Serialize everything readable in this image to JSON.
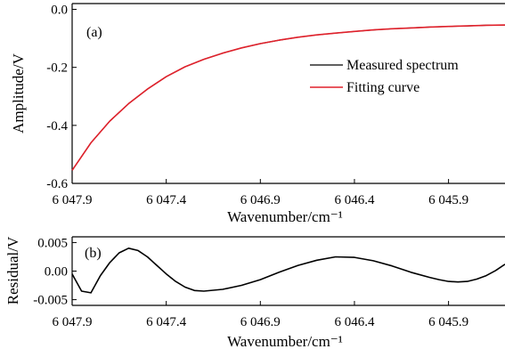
{
  "chart_data": [
    {
      "panel_label": "(a)",
      "type": "line",
      "xlabel": "Wavenumber/cm⁻¹",
      "ylabel": "Amplitude/V",
      "x_reversed": true,
      "xlim": [
        6047.9,
        6045.6
      ],
      "ylim": [
        -0.6,
        0.02
      ],
      "xticks": [
        6047.9,
        6047.4,
        6046.9,
        6046.4,
        6045.9
      ],
      "xticklabels": [
        "6 047.9",
        "6 047.4",
        "6 046.9",
        "6 046.4",
        "6 045.9"
      ],
      "yticks": [
        0.0,
        -0.2,
        -0.4,
        -0.6
      ],
      "yticklabels": [
        "0.0",
        "-0.2",
        "-0.4",
        "-0.6"
      ],
      "legend_position": "center-right",
      "series": [
        {
          "name": "Measured spectrum",
          "color": "#000000",
          "x": [
            6047.9,
            6047.8,
            6047.7,
            6047.6,
            6047.5,
            6047.4,
            6047.3,
            6047.2,
            6047.1,
            6047.0,
            6046.9,
            6046.8,
            6046.7,
            6046.6,
            6046.5,
            6046.4,
            6046.3,
            6046.2,
            6046.1,
            6046.0,
            6045.9,
            6045.8,
            6045.7,
            6045.6
          ],
          "values": [
            -0.555,
            -0.46,
            -0.385,
            -0.325,
            -0.275,
            -0.232,
            -0.198,
            -0.172,
            -0.151,
            -0.133,
            -0.118,
            -0.106,
            -0.096,
            -0.088,
            -0.082,
            -0.076,
            -0.071,
            -0.067,
            -0.064,
            -0.061,
            -0.059,
            -0.057,
            -0.055,
            -0.054
          ]
        },
        {
          "name": "Fitting curve",
          "color": "#e0212b",
          "x": [
            6047.9,
            6047.8,
            6047.7,
            6047.6,
            6047.5,
            6047.4,
            6047.3,
            6047.2,
            6047.1,
            6047.0,
            6046.9,
            6046.8,
            6046.7,
            6046.6,
            6046.5,
            6046.4,
            6046.3,
            6046.2,
            6046.1,
            6046.0,
            6045.9,
            6045.8,
            6045.7,
            6045.6
          ],
          "values": [
            -0.555,
            -0.46,
            -0.385,
            -0.325,
            -0.275,
            -0.232,
            -0.198,
            -0.172,
            -0.151,
            -0.133,
            -0.118,
            -0.106,
            -0.096,
            -0.088,
            -0.082,
            -0.076,
            -0.071,
            -0.067,
            -0.064,
            -0.061,
            -0.059,
            -0.057,
            -0.055,
            -0.054
          ]
        }
      ]
    },
    {
      "panel_label": "(b)",
      "type": "line",
      "xlabel": "Wavenumber/cm⁻¹",
      "ylabel": "Residual/V",
      "x_reversed": true,
      "xlim": [
        6047.9,
        6045.6
      ],
      "ylim": [
        -0.006,
        0.006
      ],
      "xticks": [
        6047.9,
        6047.4,
        6046.9,
        6046.4,
        6045.9
      ],
      "xticklabels": [
        "6 047.9",
        "6 047.4",
        "6 046.9",
        "6 046.4",
        "6 045.9"
      ],
      "yticks": [
        0.005,
        0.0,
        -0.005
      ],
      "yticklabels": [
        "0.005",
        "0.00",
        "-0.005"
      ],
      "series": [
        {
          "name": "",
          "color": "#000000",
          "x": [
            6047.9,
            6047.85,
            6047.8,
            6047.75,
            6047.7,
            6047.65,
            6047.6,
            6047.55,
            6047.5,
            6047.45,
            6047.4,
            6047.35,
            6047.3,
            6047.25,
            6047.2,
            6047.1,
            6047.0,
            6046.9,
            6046.8,
            6046.7,
            6046.6,
            6046.5,
            6046.4,
            6046.3,
            6046.2,
            6046.1,
            6046.0,
            6045.95,
            6045.9,
            6045.85,
            6045.8,
            6045.75,
            6045.7,
            6045.65,
            6045.6
          ],
          "values": [
            -0.0005,
            -0.0035,
            -0.0038,
            -0.0008,
            0.0015,
            0.0032,
            0.004,
            0.0036,
            0.0025,
            0.001,
            -0.0005,
            -0.0018,
            -0.0028,
            -0.0034,
            -0.0035,
            -0.0032,
            -0.0025,
            -0.0015,
            -0.0002,
            0.001,
            0.0019,
            0.0025,
            0.0024,
            0.0018,
            0.0009,
            -0.0002,
            -0.0011,
            -0.0015,
            -0.0018,
            -0.0019,
            -0.0018,
            -0.0014,
            -0.0008,
            0.0001,
            0.0012
          ]
        }
      ]
    }
  ]
}
